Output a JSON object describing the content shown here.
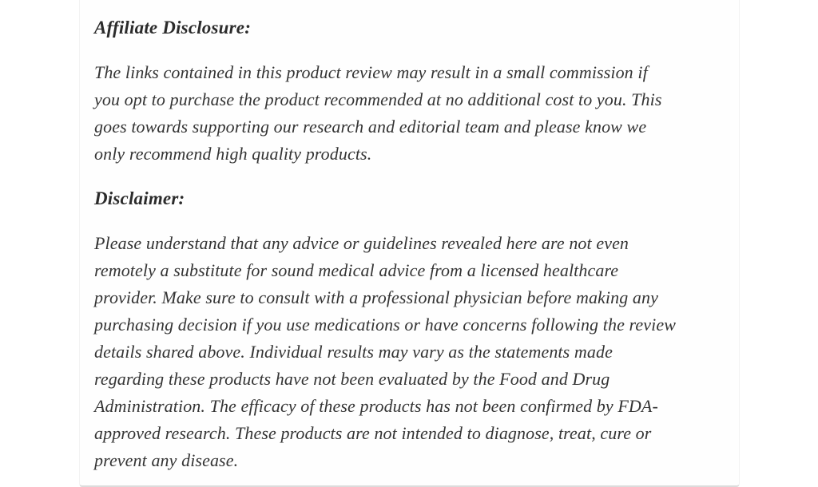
{
  "colors": {
    "background": "#ffffff",
    "card_background": "#fefefe",
    "heading_text": "#2b2b2b",
    "body_text": "#343434",
    "card_bottom_border": "#dcdcdc"
  },
  "affiliate": {
    "heading": "Affiliate Disclosure:",
    "lines": [
      "The links contained in this product review may result in a small commission if",
      "you opt to purchase the product recommended at no additional cost to you. This",
      "goes towards supporting our research and editorial team and please know we",
      "only recommend high quality products."
    ]
  },
  "disclaimer": {
    "heading": "Disclaimer:",
    "lines": [
      "Please understand that any advice or guidelines revealed here are not even",
      "remotely a substitute for sound medical advice from a licensed healthcare",
      "provider. Make sure to consult with a professional physician before making any",
      "purchasing decision if you use medications or have concerns following the review",
      "details shared above. Individual results may vary as the statements made",
      "regarding these products have not been evaluated by the Food and Drug",
      "Administration. The efficacy of these products has not been confirmed by FDA-",
      "approved research. These products are not intended to diagnose, treat, cure or",
      "prevent any disease."
    ]
  }
}
